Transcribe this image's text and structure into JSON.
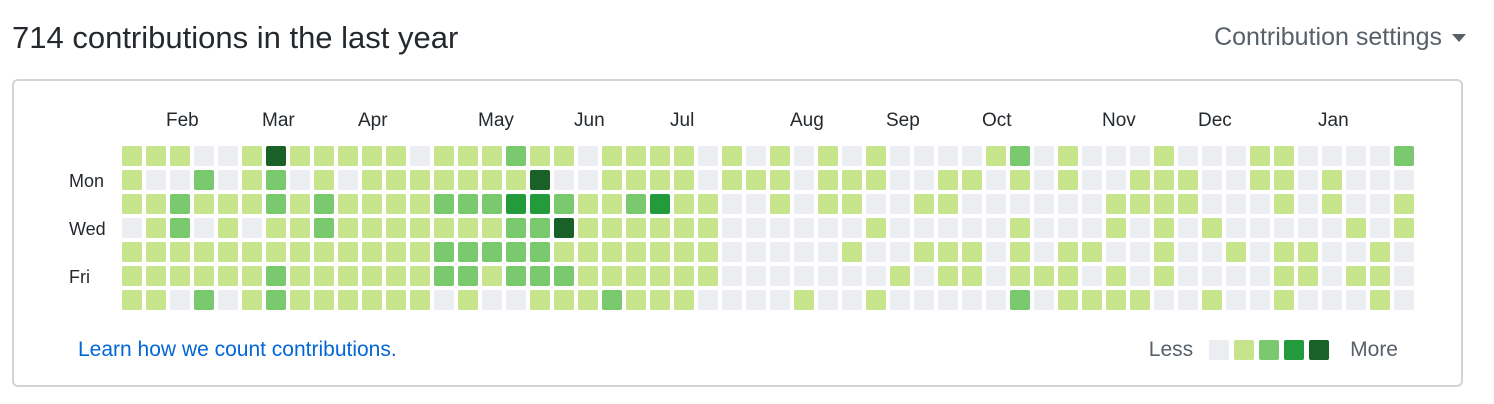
{
  "header": {
    "title": "714 contributions in the last year",
    "settings_label": "Contribution settings"
  },
  "colors": {
    "level_0": "#ebedf0",
    "level_1": "#c6e48b",
    "level_2": "#7bc96f",
    "level_3": "#239a3b",
    "level_4": "#196127"
  },
  "calendar": {
    "months": [
      "Feb",
      "Mar",
      "Apr",
      "May",
      "Jun",
      "Jul",
      "Aug",
      "Sep",
      "Oct",
      "Nov",
      "Dec",
      "Jan"
    ],
    "month_start_week": [
      2,
      6,
      10,
      15,
      19,
      23,
      28,
      32,
      36,
      41,
      45,
      50
    ],
    "weekday_labels": [
      "Mon",
      "Wed",
      "Fri"
    ],
    "weekday_label_rows": [
      1,
      3,
      5
    ],
    "weeks": [
      "1110111",
      "1011111",
      "1022110",
      "0210112",
      "0011110",
      "1110111",
      "4221122",
      "1011111",
      "1122111",
      "1011111",
      "1111111",
      "1111111",
      "0111111",
      "1121220",
      "1121221",
      "1121210",
      "2132220",
      "1432221",
      "1024121",
      "0011111",
      "1111112",
      "1121111",
      "1131111",
      "1111111",
      "0011110",
      "1100000",
      "0100000",
      "1110000",
      "0000001",
      "1110000",
      "0110100",
      "1101001",
      "0000010",
      "0010100",
      "0110110",
      "0100110",
      "1000000",
      "2101112",
      "0000010",
      "1100111",
      "0000101",
      "0011011",
      "0110001",
      "1111110",
      "0110000",
      "0001001",
      "0000100",
      "1100000",
      "1110111",
      "0000110",
      "0110000",
      "0001010",
      "0000111",
      "2011000"
    ]
  },
  "footer": {
    "learn_link": "Learn how we count contributions.",
    "legend_less": "Less",
    "legend_more": "More"
  }
}
